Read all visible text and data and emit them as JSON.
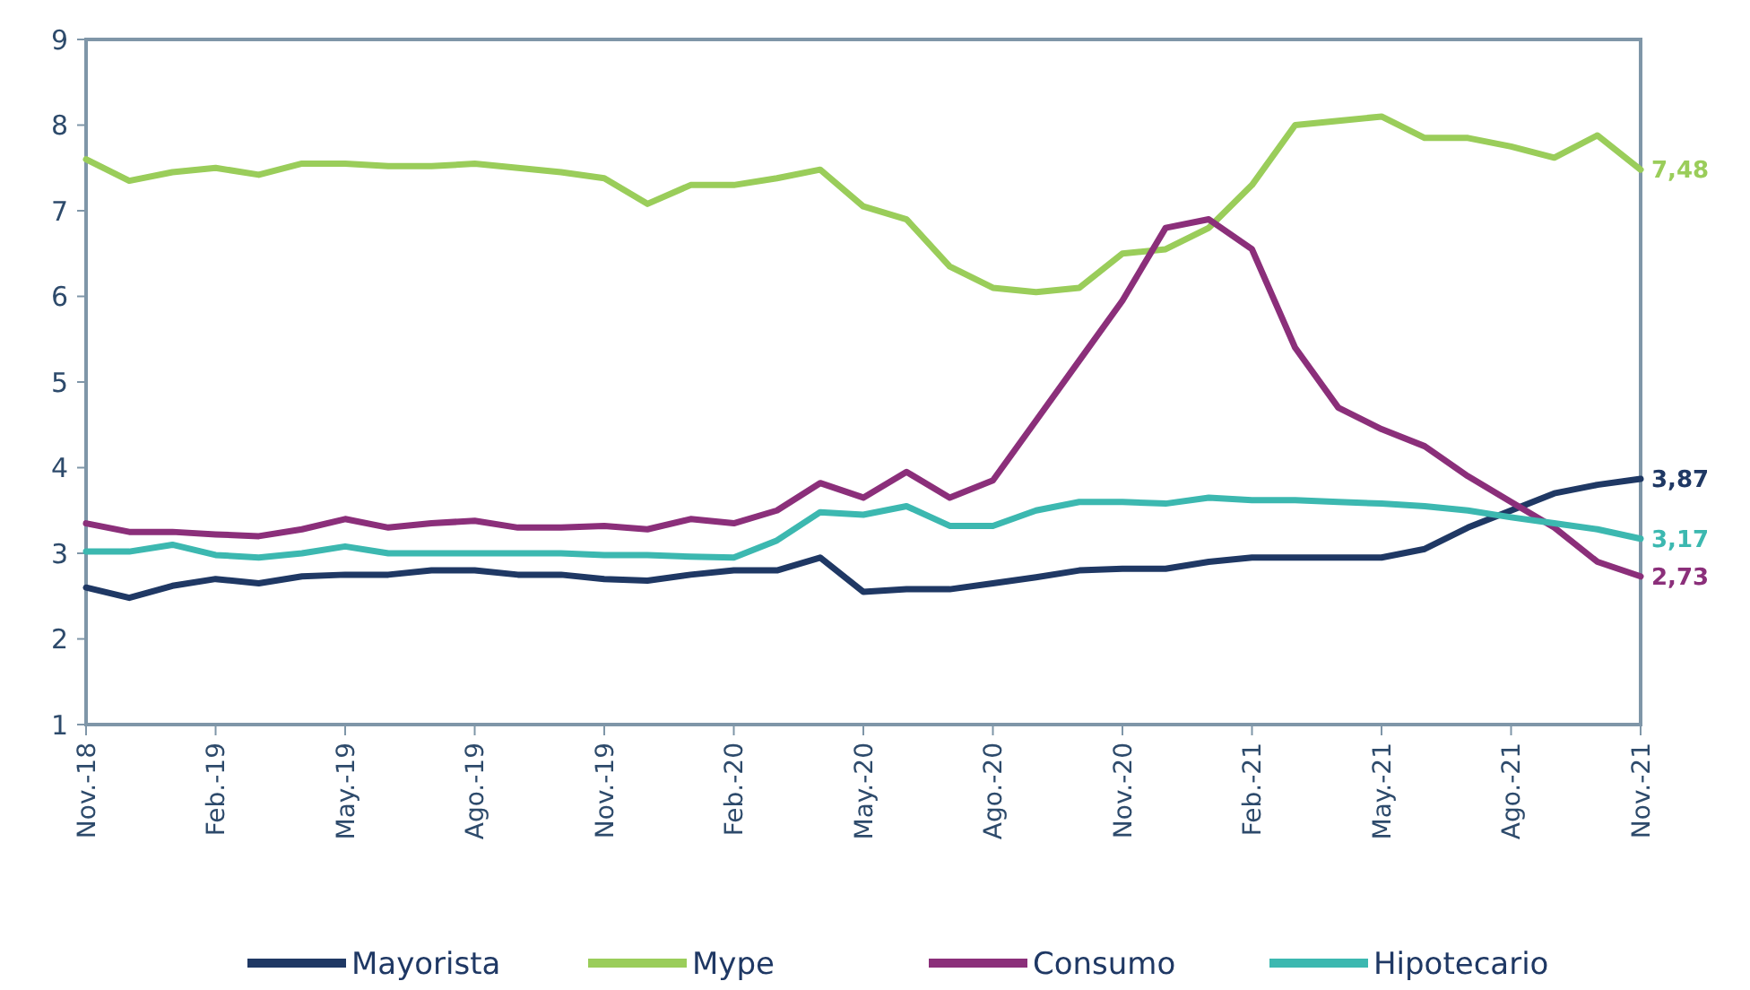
{
  "chart_data": {
    "type": "line",
    "categories": [
      "Nov.-18",
      null,
      null,
      "Feb.-19",
      null,
      null,
      "May.-19",
      null,
      null,
      "Ago.-19",
      null,
      null,
      "Nov.-19",
      null,
      null,
      "Feb.-20",
      null,
      null,
      "May.-20",
      null,
      null,
      "Ago.-20",
      null,
      null,
      "Nov.-20",
      null,
      null,
      "Feb.-21",
      null,
      null,
      "May.-21",
      null,
      null,
      "Ago.-21",
      null,
      null,
      "Nov.-21"
    ],
    "ylim": [
      1,
      9
    ],
    "yticks": [
      1,
      2,
      3,
      4,
      5,
      6,
      7,
      8,
      9
    ],
    "grid": false,
    "legend": "bottom",
    "marker": "none",
    "line_style": "solid",
    "series": [
      {
        "name": "Mayorista",
        "color": "#1f3864",
        "values": [
          2.6,
          2.48,
          2.62,
          2.7,
          2.65,
          2.73,
          2.75,
          2.75,
          2.8,
          2.8,
          2.75,
          2.75,
          2.7,
          2.68,
          2.75,
          2.8,
          2.8,
          2.95,
          2.55,
          2.58,
          2.58,
          2.65,
          2.72,
          2.8,
          2.82,
          2.82,
          2.9,
          2.95,
          2.95,
          2.95,
          2.95,
          3.05,
          3.3,
          3.5,
          3.7,
          3.8,
          3.87
        ],
        "value_labels": [
          null,
          null,
          null,
          null,
          null,
          null,
          null,
          null,
          null,
          null,
          null,
          null,
          null,
          null,
          null,
          null,
          null,
          null,
          null,
          null,
          null,
          null,
          null,
          null,
          null,
          null,
          null,
          null,
          null,
          null,
          null,
          null,
          null,
          null,
          null,
          null,
          "3,87"
        ]
      },
      {
        "name": "Mype",
        "color": "#9acd5a",
        "values": [
          7.6,
          7.35,
          7.45,
          7.5,
          7.42,
          7.55,
          7.55,
          7.52,
          7.52,
          7.55,
          7.5,
          7.45,
          7.38,
          7.08,
          7.3,
          7.3,
          7.38,
          7.48,
          7.05,
          6.9,
          6.35,
          6.1,
          6.05,
          6.1,
          6.5,
          6.55,
          6.8,
          7.3,
          8.0,
          8.05,
          8.1,
          7.85,
          7.85,
          7.75,
          7.62,
          7.88,
          7.48
        ],
        "value_labels": [
          null,
          null,
          null,
          null,
          null,
          null,
          null,
          null,
          null,
          null,
          null,
          null,
          null,
          null,
          null,
          null,
          null,
          null,
          null,
          null,
          null,
          null,
          null,
          null,
          null,
          null,
          null,
          null,
          null,
          null,
          null,
          null,
          null,
          null,
          null,
          null,
          "7,48"
        ]
      },
      {
        "name": "Consumo",
        "color": "#8b2f7a",
        "values": [
          3.35,
          3.25,
          3.25,
          3.22,
          3.2,
          3.28,
          3.4,
          3.3,
          3.35,
          3.38,
          3.3,
          3.3,
          3.32,
          3.28,
          3.4,
          3.35,
          3.5,
          3.82,
          3.65,
          3.95,
          3.65,
          3.85,
          4.55,
          5.25,
          5.95,
          6.8,
          6.9,
          6.55,
          5.4,
          4.7,
          4.45,
          4.25,
          3.9,
          3.6,
          3.3,
          2.9,
          2.73
        ],
        "value_labels": [
          null,
          null,
          null,
          null,
          null,
          null,
          null,
          null,
          null,
          null,
          null,
          null,
          null,
          null,
          null,
          null,
          null,
          null,
          null,
          null,
          null,
          null,
          null,
          null,
          null,
          null,
          null,
          null,
          null,
          null,
          null,
          null,
          null,
          null,
          null,
          null,
          "2,73"
        ]
      },
      {
        "name": "Hipotecario",
        "color": "#3cb8b0",
        "values": [
          3.02,
          3.02,
          3.1,
          2.98,
          2.95,
          3.0,
          3.08,
          3.0,
          3.0,
          3.0,
          3.0,
          3.0,
          2.98,
          2.98,
          2.96,
          2.95,
          3.15,
          3.48,
          3.45,
          3.55,
          3.32,
          3.32,
          3.5,
          3.6,
          3.6,
          3.58,
          3.65,
          3.62,
          3.62,
          3.6,
          3.58,
          3.55,
          3.5,
          3.42,
          3.35,
          3.28,
          3.17
        ],
        "value_labels": [
          null,
          null,
          null,
          null,
          null,
          null,
          null,
          null,
          null,
          null,
          null,
          null,
          null,
          null,
          null,
          null,
          null,
          null,
          null,
          null,
          null,
          null,
          null,
          null,
          null,
          null,
          null,
          null,
          null,
          null,
          null,
          null,
          null,
          null,
          null,
          null,
          "3,17"
        ]
      }
    ]
  }
}
